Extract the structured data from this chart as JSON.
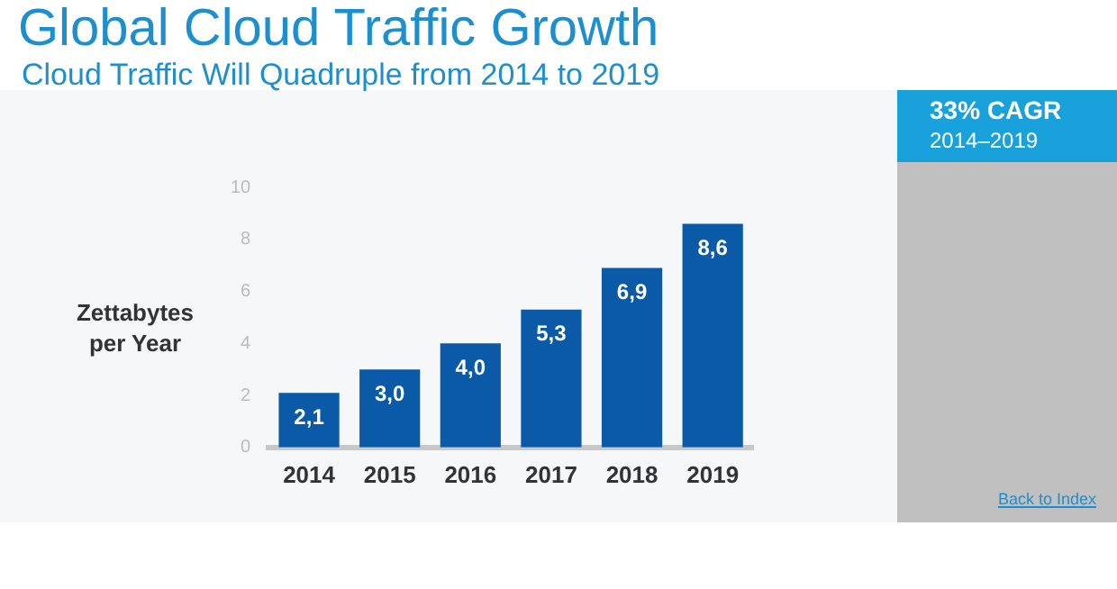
{
  "chart_data": {
    "type": "bar",
    "title": "Global Cloud Traffic Growth",
    "subtitle": "Cloud Traffic Will Quadruple from 2014 to 2019",
    "ylabel": "Zettabytes per Year",
    "categories": [
      "2014",
      "2015",
      "2016",
      "2017",
      "2018",
      "2019"
    ],
    "values": [
      2.1,
      3.0,
      4.0,
      5.3,
      6.9,
      8.6
    ],
    "value_labels": [
      "2,1",
      "3,0",
      "4,0",
      "5,3",
      "6,9",
      "8,6"
    ],
    "color": "#0a5aa8",
    "ylim": [
      0,
      10
    ],
    "yticks": [
      0,
      2,
      4,
      6,
      8,
      10
    ],
    "grid": false,
    "legend": false,
    "annotations": [
      "33% CAGR",
      "2014–2019",
      "Back to Index"
    ]
  }
}
